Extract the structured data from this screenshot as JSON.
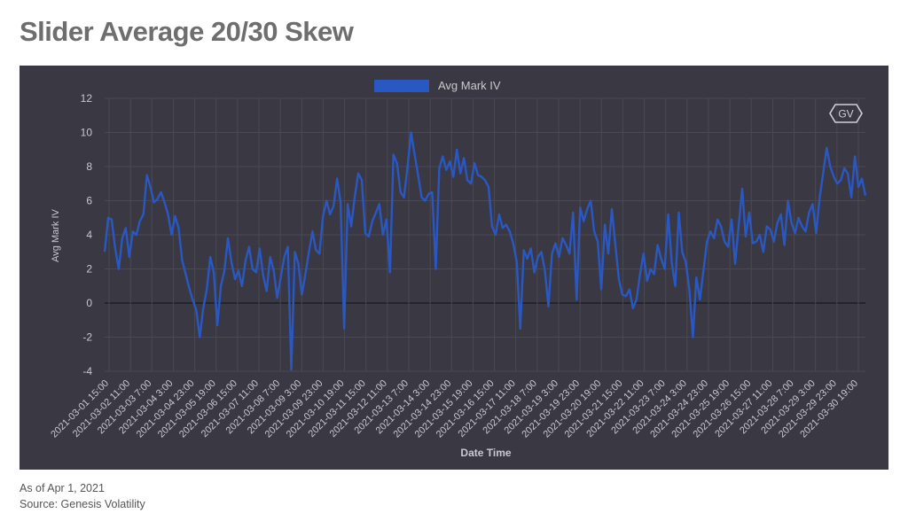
{
  "title": "Slider Average 20/30 Skew",
  "logo_text": "GV",
  "colors": {
    "background": "#393843",
    "series": "#2a58c2",
    "grid": "#4a4955",
    "zero_line": "#1e1e26",
    "text": "#c9c9cf",
    "title": "#6e6e6e"
  },
  "footer": {
    "as_of": "As of Apr 1, 2021",
    "source": "Source: Genesis Volatility"
  },
  "chart_data": {
    "type": "line",
    "title": "",
    "xlabel": "Date Time",
    "ylabel": "Avg Mark IV",
    "ylim": [
      -4,
      12
    ],
    "y_ticks": [
      -4,
      -2,
      0,
      2,
      4,
      6,
      8,
      10,
      12
    ],
    "grid": true,
    "legend_position": "top-center",
    "x_ticks": [
      "2021-03-01 15:00",
      "2021-03-02 11:00",
      "2021-03-03 7:00",
      "2021-03-04 3:00",
      "2021-03-04 23:00",
      "2021-03-05 19:00",
      "2021-03-06 15:00",
      "2021-03-07 11:00",
      "2021-03-08 7:00",
      "2021-03-09 3:00",
      "2021-03-09 23:00",
      "2021-03-10 19:00",
      "2021-03-11 15:00",
      "2021-03-12 11:00",
      "2021-03-13 7:00",
      "2021-03-14 3:00",
      "2021-03-14 23:00",
      "2021-03-15 19:00",
      "2021-03-16 15:00",
      "2021-03-17 11:00",
      "2021-03-18 7:00",
      "2021-03-19 3:00",
      "2021-03-19 23:00",
      "2021-03-20 19:00",
      "2021-03-21 15:00",
      "2021-03-22 11:00",
      "2021-03-23 7:00",
      "2021-03-24 3:00",
      "2021-03-24 23:00",
      "2021-03-25 19:00",
      "2021-03-26 15:00",
      "2021-03-27 11:00",
      "2021-03-28 7:00",
      "2021-03-29 3:00",
      "2021-03-29 23:00",
      "2021-03-30 19:00"
    ],
    "series": [
      {
        "name": "Avg Mark IV",
        "color": "#2a58c2",
        "values": [
          3.0,
          5.0,
          4.9,
          3.2,
          2.0,
          3.8,
          4.4,
          2.7,
          4.2,
          4.0,
          4.8,
          5.2,
          7.5,
          6.8,
          5.9,
          6.1,
          6.5,
          5.9,
          5.2,
          4.0,
          5.1,
          4.4,
          2.5,
          1.7,
          0.9,
          0.2,
          -0.4,
          -2.0,
          -0.3,
          0.8,
          2.7,
          1.8,
          -1.3,
          1.0,
          1.9,
          3.8,
          2.4,
          1.4,
          1.9,
          1.0,
          2.5,
          3.3,
          2.0,
          1.8,
          3.2,
          1.6,
          0.7,
          2.7,
          1.9,
          0.3,
          1.5,
          2.7,
          3.3,
          -3.9,
          3.0,
          2.3,
          0.5,
          1.7,
          3.0,
          4.2,
          3.1,
          2.9,
          5.1,
          6.0,
          5.2,
          5.7,
          7.3,
          5.9,
          -1.5,
          5.8,
          4.5,
          6.2,
          7.6,
          7.2,
          4.1,
          3.9,
          4.8,
          5.3,
          5.8,
          4.0,
          4.9,
          1.8,
          8.7,
          8.2,
          6.5,
          6.2,
          8.0,
          10.0,
          8.7,
          7.5,
          6.2,
          6.0,
          6.4,
          6.5,
          2.0,
          7.9,
          8.6,
          7.8,
          8.3,
          7.4,
          9.0,
          7.6,
          8.5,
          7.2,
          7.0,
          8.2,
          7.5,
          7.4,
          7.2,
          6.8,
          4.5,
          4.0,
          5.2,
          4.4,
          4.6,
          4.2,
          3.5,
          2.4,
          -1.5,
          3.1,
          2.6,
          3.2,
          1.8,
          2.7,
          3.0,
          1.9,
          -0.2,
          2.9,
          3.5,
          2.7,
          3.8,
          3.4,
          2.9,
          5.3,
          0.2,
          5.6,
          4.8,
          5.5,
          6.0,
          4.2,
          3.6,
          0.8,
          4.6,
          2.9,
          5.5,
          3.4,
          1.4,
          0.5,
          0.4,
          0.8,
          -0.3,
          0.2,
          1.7,
          2.9,
          1.3,
          2.0,
          1.7,
          3.4,
          2.6,
          2.0,
          5.2,
          2.4,
          1.0,
          5.3,
          3.0,
          2.4,
          0.8,
          -2.0,
          1.5,
          0.2,
          1.9,
          3.6,
          4.2,
          3.8,
          4.9,
          4.5,
          3.6,
          3.3,
          4.9,
          2.3,
          4.5,
          6.7,
          3.9,
          5.3,
          3.5,
          3.6,
          4.0,
          3.0,
          4.5,
          4.3,
          3.6,
          4.7,
          5.2,
          3.4,
          6.0,
          4.7,
          4.1,
          5.0,
          4.5,
          4.2,
          5.3,
          5.8,
          4.1,
          6.2,
          7.6,
          9.1,
          8.0,
          7.4,
          7.0,
          7.2,
          7.9,
          7.6,
          6.2,
          8.6,
          6.8,
          7.3,
          6.3
        ]
      }
    ]
  }
}
